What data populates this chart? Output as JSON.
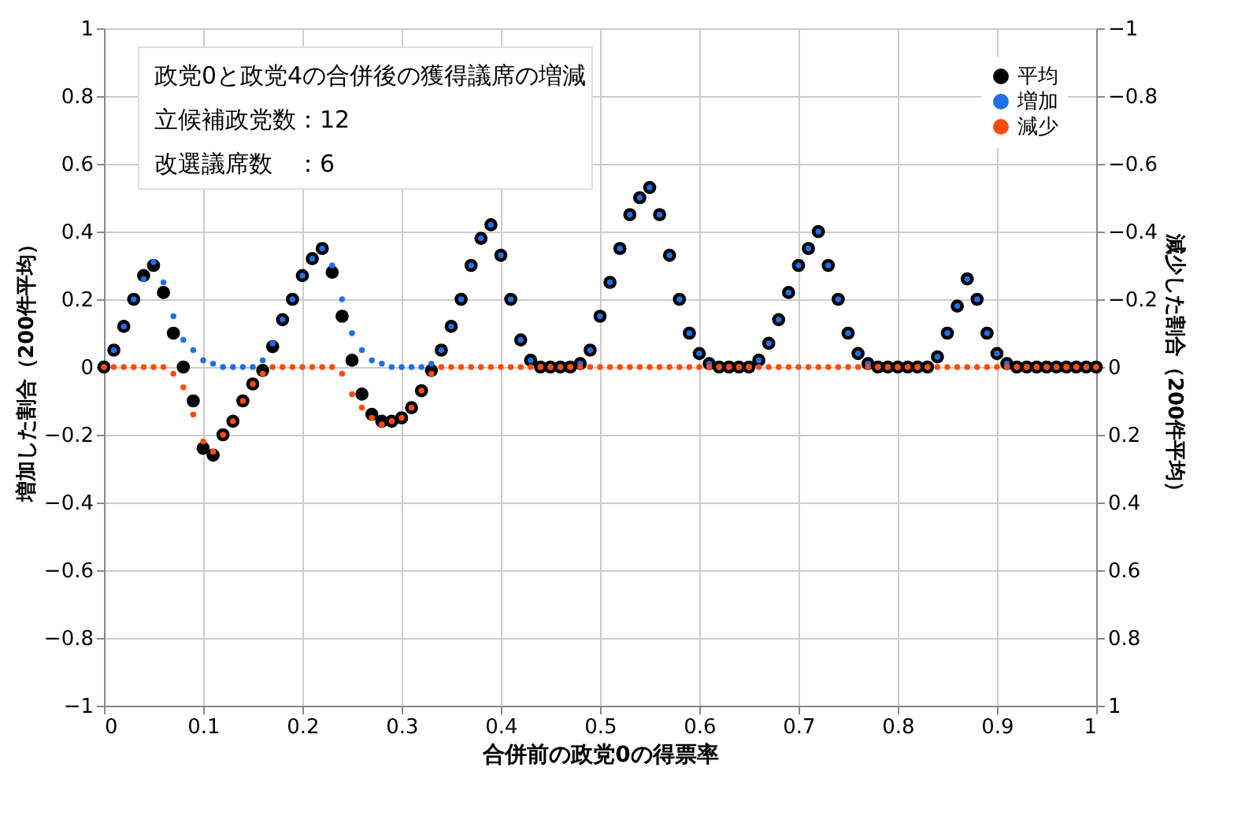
{
  "chart_data": {
    "type": "scatter",
    "xlabel": "合併前の政党0の得票率",
    "ylabel": "増加した割合（200件平均）",
    "y2label": "減少した割合（200件平均）",
    "annotations": [
      "政党0と政党4の合併後の獲得議席の増減",
      "立候補政党数：12",
      "改選議席数　：6"
    ],
    "x": [
      0,
      0.01,
      0.02,
      0.03,
      0.04,
      0.05,
      0.06,
      0.07,
      0.08,
      0.09,
      0.1,
      0.11,
      0.12,
      0.13,
      0.14,
      0.15,
      0.16,
      0.17,
      0.18,
      0.19,
      0.2,
      0.21,
      0.22,
      0.23,
      0.24,
      0.25,
      0.26,
      0.27,
      0.28,
      0.29,
      0.3,
      0.31,
      0.32,
      0.33,
      0.34,
      0.35,
      0.36,
      0.37,
      0.38,
      0.39,
      0.4,
      0.41,
      0.42,
      0.43,
      0.44,
      0.45,
      0.46,
      0.47,
      0.48,
      0.49,
      0.5,
      0.51,
      0.52,
      0.53,
      0.54,
      0.55,
      0.56,
      0.57,
      0.58,
      0.59,
      0.6,
      0.61,
      0.62,
      0.63,
      0.64,
      0.65,
      0.66,
      0.67,
      0.68,
      0.69,
      0.7,
      0.71,
      0.72,
      0.73,
      0.74,
      0.75,
      0.76,
      0.77,
      0.78,
      0.79,
      0.8,
      0.81,
      0.82,
      0.83,
      0.84,
      0.85,
      0.86,
      0.87,
      0.88,
      0.89,
      0.9,
      0.91,
      0.92,
      0.93,
      0.94,
      0.95,
      0.96,
      0.97,
      0.98,
      0.99,
      1
    ],
    "series": [
      {
        "name": "平均",
        "color": "#000000",
        "values": [
          0,
          0.05,
          0.12,
          0.2,
          0.27,
          0.3,
          0.22,
          0.1,
          0,
          -0.1,
          -0.24,
          -0.26,
          -0.2,
          -0.16,
          -0.1,
          -0.05,
          -0.01,
          0.06,
          0.14,
          0.2,
          0.27,
          0.32,
          0.35,
          0.28,
          0.15,
          0.02,
          -0.08,
          -0.14,
          -0.16,
          -0.16,
          -0.15,
          -0.12,
          -0.07,
          -0.01,
          0.05,
          0.12,
          0.2,
          0.3,
          0.38,
          0.42,
          0.33,
          0.2,
          0.08,
          0.02,
          0,
          0,
          0,
          0,
          0.01,
          0.05,
          0.15,
          0.25,
          0.35,
          0.45,
          0.5,
          0.53,
          0.45,
          0.33,
          0.2,
          0.1,
          0.04,
          0.01,
          0,
          0,
          0,
          0,
          0.02,
          0.07,
          0.14,
          0.22,
          0.3,
          0.35,
          0.4,
          0.3,
          0.2,
          0.1,
          0.04,
          0.01,
          0,
          0,
          0,
          0,
          0,
          0,
          0.03,
          0.1,
          0.18,
          0.26,
          0.2,
          0.1,
          0.04,
          0.01,
          0,
          0,
          0,
          0,
          0,
          0,
          0,
          0,
          0
        ]
      },
      {
        "name": "増加",
        "color": "#1f6fe8",
        "values": [
          0,
          0.05,
          0.12,
          0.2,
          0.26,
          0.31,
          0.25,
          0.15,
          0.08,
          0.05,
          0.02,
          0.01,
          0,
          0,
          0,
          0,
          0.02,
          0.07,
          0.14,
          0.2,
          0.27,
          0.32,
          0.35,
          0.3,
          0.2,
          0.1,
          0.05,
          0.02,
          0.01,
          0,
          0,
          0,
          0,
          0.01,
          0.05,
          0.12,
          0.2,
          0.3,
          0.38,
          0.42,
          0.33,
          0.2,
          0.08,
          0.02,
          0,
          0,
          0,
          0,
          0.01,
          0.05,
          0.15,
          0.25,
          0.35,
          0.45,
          0.5,
          0.53,
          0.45,
          0.33,
          0.2,
          0.1,
          0.04,
          0.01,
          0,
          0,
          0,
          0,
          0.02,
          0.07,
          0.14,
          0.22,
          0.3,
          0.35,
          0.4,
          0.3,
          0.2,
          0.1,
          0.04,
          0.01,
          0,
          0,
          0,
          0,
          0,
          0,
          0.03,
          0.1,
          0.18,
          0.26,
          0.2,
          0.1,
          0.04,
          0.01,
          0,
          0,
          0,
          0,
          0,
          0,
          0,
          0,
          0
        ]
      },
      {
        "name": "減少",
        "color": "#ff4c0c",
        "axis": "y2",
        "values": [
          0,
          0,
          0,
          0,
          0,
          0,
          0,
          0.02,
          0.06,
          0.14,
          0.22,
          0.25,
          0.2,
          0.16,
          0.1,
          0.05,
          0.02,
          0,
          0,
          0,
          0,
          0,
          0,
          0,
          0.02,
          0.08,
          0.12,
          0.15,
          0.17,
          0.16,
          0.15,
          0.12,
          0.07,
          0.02,
          0,
          0,
          0,
          0,
          0,
          0,
          0,
          0,
          0,
          0,
          0,
          0,
          0,
          0,
          0,
          0,
          0,
          0,
          0,
          0,
          0,
          0,
          0,
          0,
          0,
          0,
          0,
          0,
          0,
          0,
          0,
          0,
          0,
          0,
          0,
          0,
          0,
          0,
          0,
          0,
          0,
          0,
          0,
          0,
          0,
          0,
          0,
          0,
          0,
          0,
          0,
          0,
          0,
          0,
          0,
          0,
          0,
          0,
          0,
          0,
          0,
          0,
          0,
          0,
          0,
          0,
          0
        ]
      }
    ],
    "xlim": [
      0,
      1
    ],
    "xticks": [
      0,
      0.1,
      0.2,
      0.3,
      0.4,
      0.5,
      0.6,
      0.7,
      0.8,
      0.9,
      1
    ],
    "ylim": [
      -1,
      1
    ],
    "yticks": [
      -1,
      -0.8,
      -0.6,
      -0.4,
      -0.2,
      0,
      0.2,
      0.4,
      0.6,
      0.8,
      1
    ],
    "y2lim": [
      1,
      -1
    ],
    "y2ticks": [
      1,
      0.8,
      0.6,
      0.4,
      0.2,
      0,
      -0.2,
      -0.4,
      -0.6,
      -0.8,
      -1
    ],
    "grid": true,
    "legend": "top right",
    "marker": "circle"
  }
}
